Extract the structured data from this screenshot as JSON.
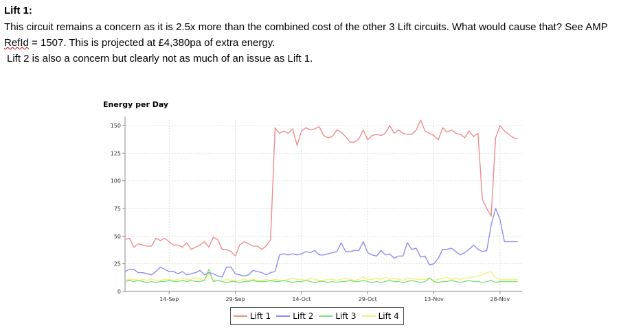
{
  "document": {
    "heading": "Lift 1:",
    "para1_before": "This circuit remains a concern as it is 2.5x more than the combined cost of the other 3 Lift circuits. What would cause that? See AMP ",
    "para1_flagged": "RefId",
    "para1_after": " = 1507.  This is projected at £4,380pa of extra energy.",
    "para2": "Lift 2 is also a concern but clearly not as much of an issue as Lift 1."
  },
  "colors": {
    "lift1": "#f28b8b",
    "lift2": "#8c8cf5",
    "lift3": "#7fe07f",
    "lift4": "#f2f27a"
  },
  "chart_data": {
    "type": "line",
    "title": "Energy per Day",
    "xlabel": "",
    "ylabel": "",
    "x_ticks": [
      "14-Sep",
      "29-Sep",
      "14-Oct",
      "29-Oct",
      "13-Nov",
      "28-Nov"
    ],
    "x_tick_days": [
      10,
      25,
      40,
      55,
      70,
      85
    ],
    "y_ticks": [
      0,
      25,
      50,
      75,
      100,
      125,
      150
    ],
    "ylim": [
      0,
      155
    ],
    "xlim": [
      0,
      90
    ],
    "grid": true,
    "legend": "bottom",
    "x": [
      0,
      1,
      2,
      3,
      4,
      5,
      6,
      7,
      8,
      9,
      10,
      11,
      12,
      13,
      14,
      15,
      16,
      17,
      18,
      19,
      20,
      21,
      22,
      23,
      24,
      25,
      26,
      27,
      28,
      29,
      30,
      31,
      32,
      33,
      34,
      35,
      36,
      37,
      38,
      39,
      40,
      41,
      42,
      43,
      44,
      45,
      46,
      47,
      48,
      49,
      50,
      51,
      52,
      53,
      54,
      55,
      56,
      57,
      58,
      59,
      60,
      61,
      62,
      63,
      64,
      65,
      66,
      67,
      68,
      69,
      70,
      71,
      72,
      73,
      74,
      75,
      76,
      77,
      78,
      79,
      80,
      81,
      82,
      83,
      84,
      85,
      86,
      87,
      88,
      89
    ],
    "series": [
      {
        "name": "Lift 1",
        "values": [
          47,
          48,
          40,
          43,
          42,
          41,
          41,
          48,
          46,
          48,
          45,
          42,
          42,
          40,
          44,
          38,
          40,
          42,
          45,
          40,
          49,
          47,
          38,
          38,
          36,
          32,
          42,
          45,
          43,
          41,
          41,
          38,
          41,
          47,
          148,
          143,
          145,
          143,
          147,
          132,
          145,
          148,
          146,
          147,
          149,
          141,
          139,
          140,
          146,
          144,
          140,
          135,
          135,
          138,
          146,
          137,
          141,
          142,
          141,
          143,
          150,
          143,
          146,
          143,
          142,
          142,
          146,
          155,
          145,
          143,
          141,
          137,
          148,
          144,
          146,
          143,
          142,
          139,
          145,
          140,
          143,
          83,
          75,
          68,
          139,
          150,
          145,
          142,
          139,
          138
        ],
        "smooth": false
      },
      {
        "name": "Lift 2",
        "values": [
          18,
          20,
          20,
          17,
          17,
          16,
          15,
          18,
          22,
          20,
          18,
          18,
          16,
          18,
          15,
          16,
          17,
          19,
          15,
          17,
          16,
          14,
          13,
          22,
          22,
          16,
          15,
          14,
          15,
          19,
          18,
          17,
          15,
          17,
          18,
          33,
          34,
          33,
          34,
          33,
          34,
          36,
          35,
          37,
          33,
          33,
          34,
          35,
          36,
          44,
          36,
          36,
          37,
          37,
          45,
          35,
          33,
          32,
          37,
          33,
          34,
          30,
          32,
          32,
          44,
          38,
          39,
          31,
          32,
          24,
          25,
          30,
          38,
          38,
          39,
          36,
          33,
          35,
          38,
          42,
          38,
          36,
          37,
          60,
          75,
          65,
          45,
          45,
          45,
          45
        ]
      },
      {
        "name": "Lift 3",
        "values": [
          9,
          10,
          9,
          10,
          9,
          8,
          9,
          8,
          9,
          9,
          10,
          9,
          9,
          10,
          9,
          10,
          9,
          9,
          10,
          20,
          9,
          10,
          9,
          8,
          9,
          9,
          8,
          9,
          9,
          10,
          9,
          9,
          9,
          10,
          9,
          9,
          10,
          9,
          8,
          9,
          9,
          10,
          9,
          8,
          9,
          9,
          8,
          9,
          8,
          9,
          9,
          10,
          9,
          9,
          10,
          9,
          8,
          9,
          8,
          9,
          10,
          9,
          9,
          8,
          9,
          10,
          9,
          8,
          9,
          12,
          9,
          8,
          9,
          9,
          10,
          9,
          8,
          9,
          10,
          9,
          9,
          8,
          9,
          10,
          8,
          9,
          9,
          9,
          9,
          9
        ]
      },
      {
        "name": "Lift 4",
        "values": [
          10,
          11,
          11,
          10,
          11,
          10,
          11,
          10,
          10,
          11,
          11,
          10,
          11,
          12,
          11,
          11,
          12,
          11,
          10,
          16,
          10,
          10,
          9,
          11,
          10,
          10,
          10,
          11,
          10,
          11,
          10,
          10,
          11,
          10,
          11,
          10,
          10,
          11,
          12,
          11,
          11,
          10,
          12,
          11,
          10,
          10,
          11,
          11,
          10,
          11,
          12,
          11,
          10,
          11,
          13,
          11,
          11,
          12,
          11,
          13,
          11,
          12,
          11,
          10,
          12,
          12,
          11,
          11,
          11,
          12,
          10,
          11,
          12,
          13,
          11,
          12,
          11,
          12,
          12,
          13,
          14,
          15,
          17,
          18,
          12,
          11,
          11,
          11,
          11,
          11
        ]
      }
    ]
  },
  "legend_labels": [
    "Lift 1",
    "Lift 2",
    "Lift 3",
    "Lift 4"
  ]
}
